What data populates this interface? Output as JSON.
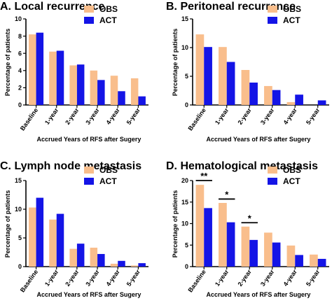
{
  "colors": {
    "obs": "#F9BE8C",
    "act": "#1414E6",
    "axis": "#000000"
  },
  "chart_data": [
    {
      "type": "bar",
      "title": "A.  Local recurrence",
      "xlabel": "Accrued Years of RFS after Sugery",
      "ylabel": "Percentage of patients",
      "ylim": [
        0,
        10
      ],
      "yticks": [
        0,
        2,
        4,
        6,
        8,
        10
      ],
      "categories": [
        "Baseline",
        "1-year",
        "2-year",
        "3-year",
        "4-year",
        "5-year"
      ],
      "legend_position": "top-right",
      "series": [
        {
          "name": "OBS",
          "values": [
            8.2,
            6.2,
            4.6,
            4.0,
            3.4,
            3.1
          ]
        },
        {
          "name": "ACT",
          "values": [
            8.4,
            6.3,
            4.7,
            2.9,
            1.6,
            1.0
          ]
        }
      ],
      "annotations": []
    },
    {
      "type": "bar",
      "title": "B.  Peritoneal recurrence",
      "xlabel": "Accrued Years of RFS after Sugery",
      "ylabel": "Percentage of patients",
      "ylim": [
        0,
        15
      ],
      "yticks": [
        0,
        5,
        10,
        15
      ],
      "categories": [
        "Baseline",
        "1-year",
        "2-year",
        "3-year",
        "4-year",
        "5-year"
      ],
      "legend_position": "top-right",
      "series": [
        {
          "name": "OBS",
          "values": [
            12.3,
            10.1,
            6.1,
            3.3,
            0.5,
            0.0
          ]
        },
        {
          "name": "ACT",
          "values": [
            10.1,
            7.5,
            3.9,
            2.6,
            1.8,
            0.8
          ]
        }
      ],
      "annotations": []
    },
    {
      "type": "bar",
      "title": "C.  Lymph node metastasis",
      "xlabel": "Accrued Years of RFS after Sugery",
      "ylabel": "Percentage of patients",
      "ylim": [
        0,
        15
      ],
      "yticks": [
        0,
        5,
        10,
        15
      ],
      "categories": [
        "Baseline",
        "1-year",
        "2-year",
        "3-year",
        "4-year",
        "5-year"
      ],
      "legend_position": "top-right",
      "series": [
        {
          "name": "OBS",
          "values": [
            10.3,
            8.2,
            3.1,
            3.3,
            0.5,
            0.2
          ]
        },
        {
          "name": "ACT",
          "values": [
            12.0,
            9.2,
            4.0,
            2.2,
            1.0,
            0.6
          ]
        }
      ],
      "annotations": []
    },
    {
      "type": "bar",
      "title": "D.  Hematological metastasis",
      "xlabel": "Accrued Years of RFS after Sugery",
      "ylabel": "Percentage of patients",
      "ylim": [
        0,
        20
      ],
      "yticks": [
        0,
        5,
        10,
        15,
        20
      ],
      "categories": [
        "Baseline",
        "1-year",
        "2-year",
        "3-year",
        "4-year",
        "5-year"
      ],
      "legend_position": "top-right",
      "series": [
        {
          "name": "OBS",
          "values": [
            19.0,
            14.8,
            9.3,
            7.9,
            4.9,
            2.8
          ]
        },
        {
          "name": "ACT",
          "values": [
            13.6,
            10.3,
            6.2,
            5.6,
            2.7,
            1.8
          ]
        }
      ],
      "annotations": [
        {
          "category_index": 0,
          "text": "**",
          "y": 20.0
        },
        {
          "category_index": 1,
          "text": "*",
          "y": 15.7
        },
        {
          "category_index": 2,
          "text": "*",
          "y": 10.2
        }
      ]
    }
  ]
}
